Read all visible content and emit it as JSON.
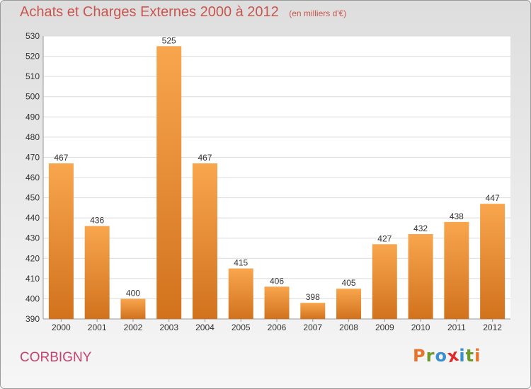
{
  "header": {
    "title": "Achats et Charges Externes 2000 à 2012",
    "subtitle": "(en milliers d'€)"
  },
  "footer": {
    "place": "CORBIGNY",
    "logo_text": "Proxiti"
  },
  "colors": {
    "bar_light": "#f8a64e",
    "bar_dark": "#d2721d",
    "title": "#c8554e",
    "place": "#c4436c",
    "logo_letters": [
      "#e8732b",
      "#6a9a29",
      "#3a8fd1",
      "#e02b2b",
      "#3a8fd1",
      "#6a9a29",
      "#e8732b"
    ]
  },
  "chart_data": {
    "type": "bar",
    "title": "Achats et Charges Externes 2000 à 2012",
    "subtitle": "(en milliers d'€)",
    "categories": [
      "2000",
      "2001",
      "2002",
      "2003",
      "2004",
      "2005",
      "2006",
      "2007",
      "2008",
      "2009",
      "2010",
      "2011",
      "2012"
    ],
    "values": [
      467,
      436,
      400,
      525,
      467,
      415,
      406,
      398,
      405,
      427,
      432,
      438,
      447
    ],
    "ylim": [
      390,
      530
    ],
    "yticks": [
      390,
      400,
      410,
      420,
      430,
      440,
      450,
      460,
      470,
      480,
      490,
      500,
      510,
      520,
      530
    ],
    "grid": true,
    "data_labels": true
  }
}
